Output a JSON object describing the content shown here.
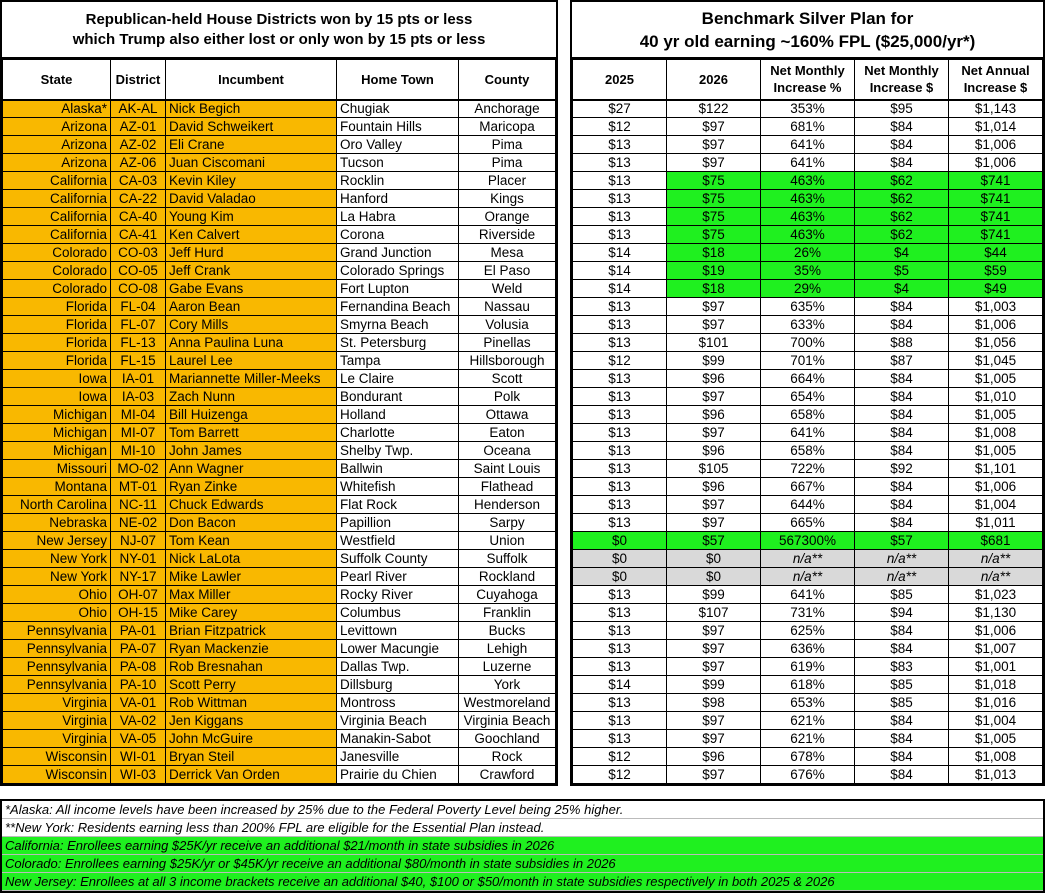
{
  "left": {
    "title_line1": "Republican-held House Districts won by 15 pts or less",
    "title_line2": "which Trump also either lost or only won by 15 pts or less",
    "headers": [
      "State",
      "District",
      "Incumbent",
      "Home Town",
      "County"
    ]
  },
  "right": {
    "title_line1": "Benchmark Silver Plan for",
    "title_line2": "40 yr old earning ~160% FPL ($25,000/yr*)",
    "headers": [
      "2025",
      "2026",
      "Net Monthly Increase %",
      "Net Monthly Increase $",
      "Net Annual Increase $"
    ]
  },
  "colors": {
    "highlight_orange": "#f9b800",
    "highlight_green": "#1ff01f",
    "na_gray": "#d9d9d9"
  },
  "rows": [
    [
      "Alaska*",
      "AK-AL",
      "Nick Begich",
      "Chugiak",
      "Anchorage",
      "$27",
      "$122",
      "353%",
      "$95",
      "$1,143",
      ""
    ],
    [
      "Arizona",
      "AZ-01",
      "David Schweikert",
      "Fountain Hills",
      "Maricopa",
      "$12",
      "$97",
      "681%",
      "$84",
      "$1,014",
      ""
    ],
    [
      "Arizona",
      "AZ-02",
      "Eli Crane",
      "Oro Valley",
      "Pima",
      "$13",
      "$97",
      "641%",
      "$84",
      "$1,006",
      ""
    ],
    [
      "Arizona",
      "AZ-06",
      "Juan Ciscomani",
      "Tucson",
      "Pima",
      "$13",
      "$97",
      "641%",
      "$84",
      "$1,006",
      ""
    ],
    [
      "California",
      "CA-03",
      "Kevin Kiley",
      "Rocklin",
      "Placer",
      "$13",
      "$75",
      "463%",
      "$62",
      "$741",
      "green"
    ],
    [
      "California",
      "CA-22",
      "David Valadao",
      "Hanford",
      "Kings",
      "$13",
      "$75",
      "463%",
      "$62",
      "$741",
      "green"
    ],
    [
      "California",
      "CA-40",
      "Young Kim",
      "La Habra",
      "Orange",
      "$13",
      "$75",
      "463%",
      "$62",
      "$741",
      "green"
    ],
    [
      "California",
      "CA-41",
      "Ken Calvert",
      "Corona",
      "Riverside",
      "$13",
      "$75",
      "463%",
      "$62",
      "$741",
      "green"
    ],
    [
      "Colorado",
      "CO-03",
      "Jeff Hurd",
      "Grand Junction",
      "Mesa",
      "$14",
      "$18",
      "26%",
      "$4",
      "$44",
      "green"
    ],
    [
      "Colorado",
      "CO-05",
      "Jeff Crank",
      "Colorado Springs",
      "El Paso",
      "$14",
      "$19",
      "35%",
      "$5",
      "$59",
      "green"
    ],
    [
      "Colorado",
      "CO-08",
      "Gabe Evans",
      "Fort Lupton",
      "Weld",
      "$14",
      "$18",
      "29%",
      "$4",
      "$49",
      "green"
    ],
    [
      "Florida",
      "FL-04",
      "Aaron Bean",
      "Fernandina Beach",
      "Nassau",
      "$13",
      "$97",
      "635%",
      "$84",
      "$1,003",
      ""
    ],
    [
      "Florida",
      "FL-07",
      "Cory Mills",
      "Smyrna Beach",
      "Volusia",
      "$13",
      "$97",
      "633%",
      "$84",
      "$1,006",
      ""
    ],
    [
      "Florida",
      "FL-13",
      "Anna Paulina Luna",
      "St. Petersburg",
      "Pinellas",
      "$13",
      "$101",
      "700%",
      "$88",
      "$1,056",
      ""
    ],
    [
      "Florida",
      "FL-15",
      "Laurel Lee",
      "Tampa",
      "Hillsborough",
      "$12",
      "$99",
      "701%",
      "$87",
      "$1,045",
      ""
    ],
    [
      "Iowa",
      "IA-01",
      "Mariannette Miller-Meeks",
      "Le Claire",
      "Scott",
      "$13",
      "$96",
      "664%",
      "$84",
      "$1,005",
      ""
    ],
    [
      "Iowa",
      "IA-03",
      "Zach Nunn",
      "Bondurant",
      "Polk",
      "$13",
      "$97",
      "654%",
      "$84",
      "$1,010",
      ""
    ],
    [
      "Michigan",
      "MI-04",
      "Bill Huizenga",
      "Holland",
      "Ottawa",
      "$13",
      "$96",
      "658%",
      "$84",
      "$1,005",
      ""
    ],
    [
      "Michigan",
      "MI-07",
      "Tom Barrett",
      "Charlotte",
      "Eaton",
      "$13",
      "$97",
      "641%",
      "$84",
      "$1,008",
      ""
    ],
    [
      "Michigan",
      "MI-10",
      "John James",
      "Shelby Twp.",
      "Oceana",
      "$13",
      "$96",
      "658%",
      "$84",
      "$1,005",
      ""
    ],
    [
      "Missouri",
      "MO-02",
      "Ann Wagner",
      "Ballwin",
      "Saint Louis",
      "$13",
      "$105",
      "722%",
      "$92",
      "$1,101",
      ""
    ],
    [
      "Montana",
      "MT-01",
      "Ryan Zinke",
      "Whitefish",
      "Flathead",
      "$13",
      "$96",
      "667%",
      "$84",
      "$1,006",
      ""
    ],
    [
      "North Carolina",
      "NC-11",
      "Chuck Edwards",
      "Flat Rock",
      "Henderson",
      "$13",
      "$97",
      "644%",
      "$84",
      "$1,004",
      ""
    ],
    [
      "Nebraska",
      "NE-02",
      "Don Bacon",
      "Papillion",
      "Sarpy",
      "$13",
      "$97",
      "665%",
      "$84",
      "$1,011",
      ""
    ],
    [
      "New Jersey",
      "NJ-07",
      "Tom Kean",
      "Westfield",
      "Union",
      "$0",
      "$57",
      "567300%",
      "$57",
      "$681",
      "greenall"
    ],
    [
      "New York",
      "NY-01",
      "Nick LaLota",
      "Suffolk County",
      "Suffolk",
      "$0",
      "$0",
      "n/a**",
      "n/a**",
      "n/a**",
      "gray"
    ],
    [
      "New York",
      "NY-17",
      "Mike Lawler",
      "Pearl River",
      "Rockland",
      "$0",
      "$0",
      "n/a**",
      "n/a**",
      "n/a**",
      "gray"
    ],
    [
      "Ohio",
      "OH-07",
      "Max Miller",
      "Rocky River",
      "Cuyahoga",
      "$13",
      "$99",
      "641%",
      "$85",
      "$1,023",
      ""
    ],
    [
      "Ohio",
      "OH-15",
      "Mike Carey",
      "Columbus",
      "Franklin",
      "$13",
      "$107",
      "731%",
      "$94",
      "$1,130",
      ""
    ],
    [
      "Pennsylvania",
      "PA-01",
      "Brian Fitzpatrick",
      "Levittown",
      "Bucks",
      "$13",
      "$97",
      "625%",
      "$84",
      "$1,006",
      ""
    ],
    [
      "Pennsylvania",
      "PA-07",
      "Ryan Mackenzie",
      "Lower Macungie",
      "Lehigh",
      "$13",
      "$97",
      "636%",
      "$84",
      "$1,007",
      ""
    ],
    [
      "Pennsylvania",
      "PA-08",
      "Rob Bresnahan",
      "Dallas Twp.",
      "Luzerne",
      "$13",
      "$97",
      "619%",
      "$83",
      "$1,001",
      ""
    ],
    [
      "Pennsylvania",
      "PA-10",
      "Scott Perry",
      "Dillsburg",
      "York",
      "$14",
      "$99",
      "618%",
      "$85",
      "$1,018",
      ""
    ],
    [
      "Virginia",
      "VA-01",
      "Rob Wittman",
      "Montross",
      "Westmoreland",
      "$13",
      "$98",
      "653%",
      "$85",
      "$1,016",
      ""
    ],
    [
      "Virginia",
      "VA-02",
      "Jen Kiggans",
      "Virginia Beach",
      "Virginia Beach",
      "$13",
      "$97",
      "621%",
      "$84",
      "$1,004",
      ""
    ],
    [
      "Virginia",
      "VA-05",
      "John McGuire",
      "Manakin-Sabot",
      "Goochland",
      "$13",
      "$97",
      "621%",
      "$84",
      "$1,005",
      ""
    ],
    [
      "Wisconsin",
      "WI-01",
      "Bryan Steil",
      "Janesville",
      "Rock",
      "$12",
      "$96",
      "678%",
      "$84",
      "$1,008",
      ""
    ],
    [
      "Wisconsin",
      "WI-03",
      "Derrick Van Orden",
      "Prairie du Chien",
      "Crawford",
      "$12",
      "$97",
      "676%",
      "$84",
      "$1,013",
      ""
    ]
  ],
  "notes": [
    {
      "text": "*Alaska: All income levels have been increased by 25% due to the Federal Poverty Level being 25% higher.",
      "green": false
    },
    {
      "text": "**New York: Residents earning less than 200% FPL are eligible for the Essential Plan instead.",
      "green": false
    },
    {
      "text": "California: Enrollees earning $25K/yr receive an additional $21/month in state subsidies in 2026",
      "green": true
    },
    {
      "text": "Colorado: Enrollees earning $25K/yr or $45K/yr receive an additional $80/month in state subsidies in 2026",
      "green": true
    },
    {
      "text": "New Jersey: Enrollees at all 3 income brackets receive an additional $40, $100 or $50/month in state subsidies respectively in both 2025 & 2026",
      "green": true
    }
  ]
}
